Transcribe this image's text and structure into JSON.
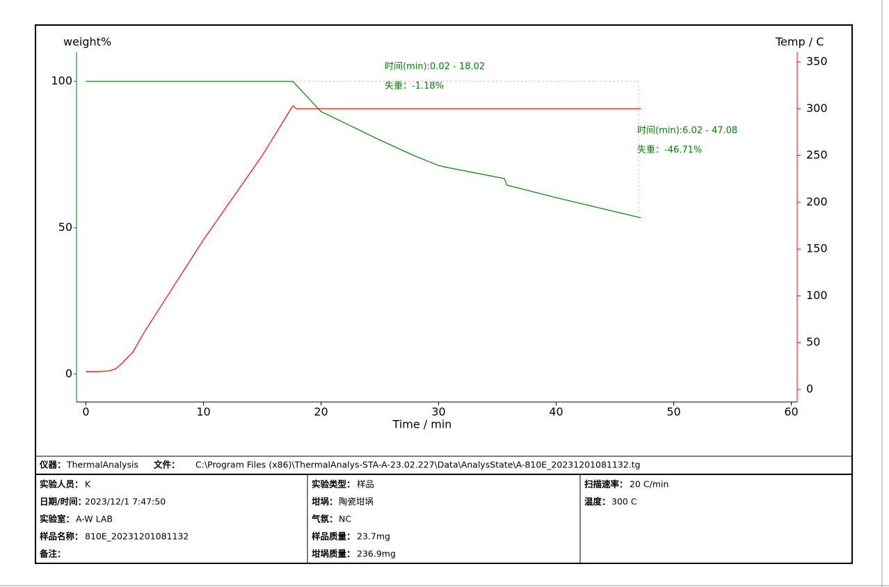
{
  "chart_data": {
    "type": "line",
    "y_label": "weight%",
    "y2_label": "Temp / C",
    "x_label": "Time / min",
    "xlim": [
      -0.8,
      60.5
    ],
    "xticks": [
      0,
      10,
      20,
      30,
      40,
      50,
      60
    ],
    "ylim": [
      -9.5,
      110
    ],
    "yticks": [
      0,
      50,
      100
    ],
    "y2lim": [
      -13.4,
      360.4
    ],
    "y2ticks": [
      0,
      50,
      100,
      150,
      200,
      250,
      300,
      350
    ],
    "y_color": "#008000",
    "y2_color": "#ff0000",
    "series": [
      {
        "name": "weight%",
        "color": "#008000",
        "x": [
          0,
          17.6,
          20,
          25,
          28,
          30,
          30.5,
          35.6,
          35.8,
          40,
          47.2
        ],
        "values": [
          100,
          100,
          89.7,
          80,
          74.5,
          71.3,
          70.8,
          66.8,
          64.6,
          60.3,
          53.4
        ]
      },
      {
        "name": "Temp / C",
        "color": "#ff0000",
        "axis": "y2",
        "x": [
          0,
          1,
          2,
          2.5,
          3,
          4,
          5,
          10,
          15,
          17.3,
          17.6,
          17.9,
          19,
          20,
          30,
          47.2
        ],
        "values": [
          19,
          19,
          20,
          22,
          27,
          40,
          62,
          160,
          250,
          297,
          303,
          300,
          300,
          300,
          300,
          300
        ]
      }
    ],
    "annotations": [
      {
        "text": "时间(min):0.02 - 18.02"
      },
      {
        "text": "失重：-1.18%"
      },
      {
        "text": "时间(min):6.02 - 47.08"
      },
      {
        "text": "失重：-46.71%"
      }
    ]
  },
  "info": {
    "header": [
      {
        "label": "仪器：",
        "value": "ThermalAnalysis"
      },
      {
        "label": "文件：",
        "value": "C:\\Program Files (x86)\\ThermalAnalys-STA-A-23.02.227\\Data\\AnalysState\\A-810E_20231201081132.tg"
      }
    ],
    "columns": [
      [
        {
          "label": "实验人员：",
          "value": "K"
        },
        {
          "label": "日期/时间：",
          "value": "2023/12/1 7:47:50"
        },
        {
          "label": "实验室：",
          "value": "A-W LAB"
        },
        {
          "label": "样品名称：",
          "value": "810E_20231201081132"
        },
        {
          "label": "备注：",
          "value": ""
        }
      ],
      [
        {
          "label": "实验类型：",
          "value": "样品"
        },
        {
          "label": "坩埚：",
          "value": "陶瓷坩埚"
        },
        {
          "label": "气氛：",
          "value": "NC"
        },
        {
          "label": "样品质量：",
          "value": "23.7mg"
        },
        {
          "label": "坩埚质量：",
          "value": "236.9mg"
        }
      ],
      [
        {
          "label": "扫描速率：",
          "value": "20 C/min"
        },
        {
          "label": "温度：",
          "value": "300 C"
        }
      ]
    ]
  }
}
